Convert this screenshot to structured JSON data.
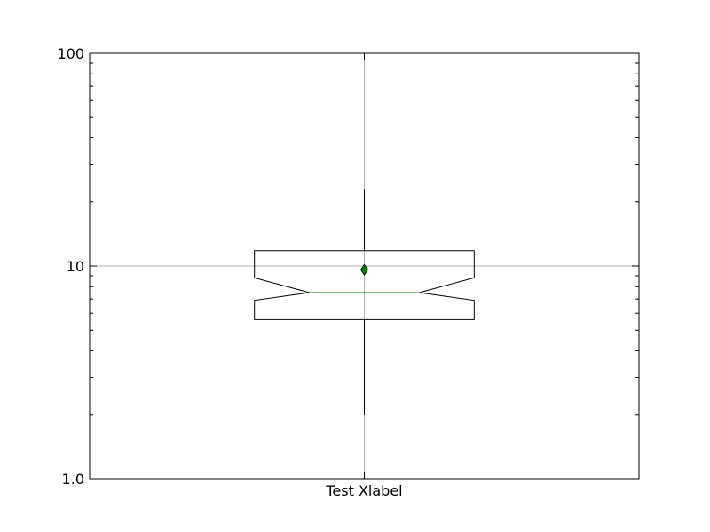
{
  "chart_data": {
    "type": "box",
    "title": "",
    "xlabel": "Test Xlabel",
    "ylabel": "",
    "yscale": "log",
    "ylim": [
      1,
      100
    ],
    "yticks": [
      {
        "value": 1,
        "label": "1.0"
      },
      {
        "value": 10,
        "label": "10"
      },
      {
        "value": 100,
        "label": "100"
      }
    ],
    "grid": true,
    "notched": true,
    "show_mean": true,
    "boxes": [
      {
        "whisker_low": 2.0,
        "q1": 5.6,
        "notch_low": 6.9,
        "median": 7.5,
        "notch_high": 8.8,
        "q3": 11.8,
        "whisker_high": 23.0,
        "mean": 9.6
      }
    ],
    "colors": {
      "box": "#000000",
      "median": "#008000",
      "mean": "#008000",
      "grid": "#b0b0b0"
    }
  }
}
